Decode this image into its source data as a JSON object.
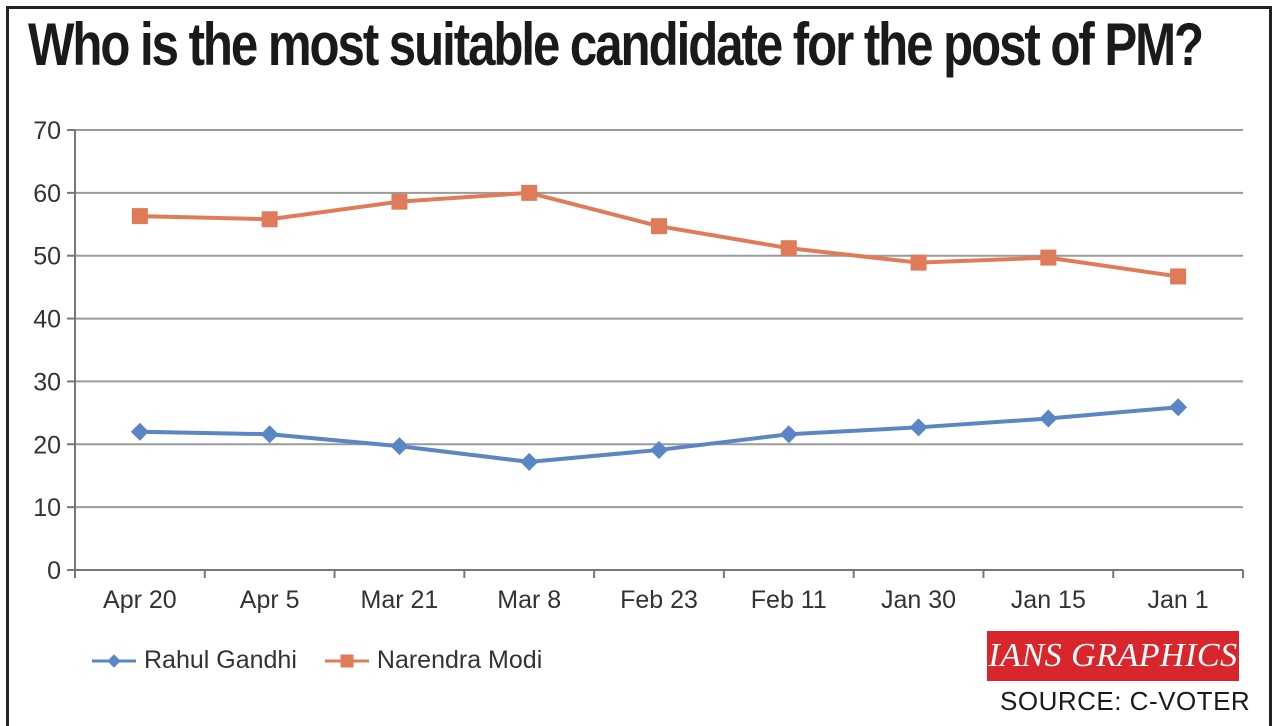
{
  "title": "Who is the most suitable candidate for the post of PM?",
  "brand": {
    "label": "IANS GRAPHICS",
    "color": "#d9262c"
  },
  "source": "SOURCE: C-VOTER",
  "chart_data": {
    "type": "line",
    "title": "Who is the most suitable candidate for the post of PM?",
    "xlabel": "",
    "ylabel": "",
    "categories": [
      "Apr 20",
      "Apr 5",
      "Mar 21",
      "Mar 8",
      "Feb 23",
      "Feb 11",
      "Jan 30",
      "Jan 15",
      "Jan 1"
    ],
    "ylim": [
      0,
      70
    ],
    "yticks": [
      0,
      10,
      20,
      30,
      40,
      50,
      60,
      70
    ],
    "grid": true,
    "legend_position": "bottom-left",
    "series": [
      {
        "name": "Rahul Gandhi",
        "color": "#5b86c5",
        "marker": "diamond",
        "values": [
          22,
          21.6,
          19.7,
          17.2,
          19.1,
          21.6,
          22.7,
          24.1,
          25.9
        ]
      },
      {
        "name": "Narendra Modi",
        "color": "#e07b5a",
        "marker": "square",
        "values": [
          56.3,
          55.8,
          58.6,
          60,
          54.7,
          51.2,
          48.9,
          49.7,
          46.7
        ]
      }
    ]
  }
}
